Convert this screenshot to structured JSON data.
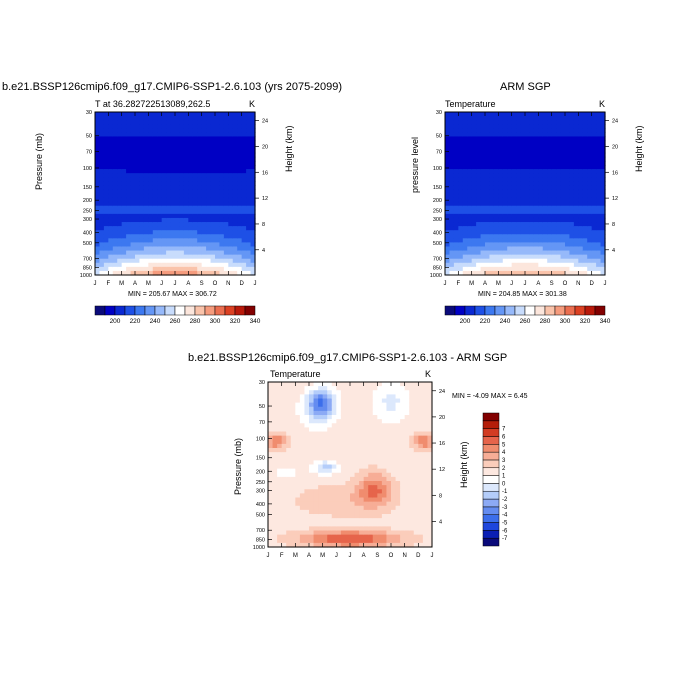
{
  "months": [
    "J",
    "F",
    "M",
    "A",
    "M",
    "J",
    "J",
    "A",
    "S",
    "O",
    "N",
    "D",
    "J"
  ],
  "pressure_ticks": [
    "30",
    "50",
    "70",
    "100",
    "150",
    "200",
    "250",
    "300",
    "400",
    "500",
    "700",
    "850",
    "1000"
  ],
  "colors": {
    "abs_palette": [
      "#0a0a7a",
      "#0000c4",
      "#0a28d2",
      "#1e50e6",
      "#3c78f0",
      "#6496f5",
      "#96b9fa",
      "#c8dcfc",
      "#ffffff",
      "#fce6dc",
      "#fac3aa",
      "#f59b7d",
      "#eb6e50",
      "#dc4123",
      "#b9190a",
      "#820000"
    ],
    "diff_palette": [
      "#0a0a7a",
      "#0a1eb4",
      "#1e46dc",
      "#3c6eeb",
      "#648cf0",
      "#8caaf5",
      "#b4cdfa",
      "#dce8fc",
      "#ffffff",
      "#fde8e0",
      "#fbcdbb",
      "#f7ad96",
      "#f08c6e",
      "#e6644b",
      "#d23c23",
      "#b41e0a",
      "#820000"
    ]
  },
  "panels": {
    "model": {
      "title": "b.e21.BSSP126cmip6.f09_g17.CMIP6-SSP1-2.6.103 (yrs 2075-2099)",
      "subtitle": "T at 36.282722513089,262.5",
      "units": "K",
      "ylabel_left": "Pressure (mb)",
      "ylabel_right": "Height (km)",
      "stats": "MIN = 205.67 MAX = 306.72"
    },
    "obs": {
      "title": "ARM SGP",
      "subtitle": "Temperature",
      "units": "K",
      "ylabel_left": "pressure level",
      "ylabel_right": "Height (km)",
      "stats": "MIN = 204.85 MAX = 301.38"
    },
    "diff": {
      "title": "b.e21.BSSP126cmip6.f09_g17.CMIP6-SSP1-2.6.103 - ARM SGP",
      "subtitle": "Temperature",
      "units": "K",
      "ylabel_left": "Pressure (mb)",
      "ylabel_right": "Height (km)",
      "stats": "MIN =  -4.09 MAX =   6.45"
    }
  },
  "chart_data": [
    {
      "type": "heatmap",
      "title": "b.e21.BSSP126cmip6.f09_g17.CMIP6-SSP1-2.6.103 (yrs 2075-2099)",
      "subtitle": "T at 36.282722513089,262.5",
      "units": "K",
      "xlabel": "",
      "ylabel": "Pressure (mb)",
      "y2label": "Height (km)",
      "x": [
        "J",
        "F",
        "M",
        "A",
        "M",
        "J",
        "J",
        "A",
        "S",
        "O",
        "N",
        "D",
        "J"
      ],
      "y_pressure_mb": [
        30,
        50,
        70,
        100,
        150,
        200,
        250,
        300,
        400,
        500,
        700,
        850,
        1000
      ],
      "y2_ticks_km": [
        4,
        8,
        12,
        16,
        20,
        24
      ],
      "colorbar_labels": [
        200,
        220,
        240,
        260,
        280,
        300,
        320,
        340
      ],
      "min": 205.67,
      "max": 306.72
    },
    {
      "type": "heatmap",
      "title": "ARM SGP",
      "subtitle": "Temperature",
      "units": "K",
      "xlabel": "",
      "ylabel": "pressure level",
      "y2label": "Height (km)",
      "x": [
        "J",
        "F",
        "M",
        "A",
        "M",
        "J",
        "J",
        "A",
        "S",
        "O",
        "N",
        "D",
        "J"
      ],
      "y_pressure_mb": [
        30,
        50,
        70,
        100,
        150,
        200,
        250,
        300,
        400,
        500,
        700,
        850,
        1000
      ],
      "y2_ticks_km": [
        4,
        8,
        12,
        16,
        20,
        24
      ],
      "colorbar_labels": [
        200,
        220,
        240,
        260,
        280,
        300,
        320,
        340
      ],
      "min": 204.85,
      "max": 301.38
    },
    {
      "type": "heatmap",
      "title": "b.e21.BSSP126cmip6.f09_g17.CMIP6-SSP1-2.6.103 - ARM SGP",
      "subtitle": "Temperature",
      "units": "K",
      "xlabel": "",
      "ylabel": "Pressure (mb)",
      "y2label": "Height (km)",
      "x": [
        "J",
        "F",
        "M",
        "A",
        "M",
        "J",
        "J",
        "A",
        "S",
        "O",
        "N",
        "D",
        "J"
      ],
      "y_pressure_mb": [
        30,
        50,
        70,
        100,
        150,
        200,
        250,
        300,
        400,
        500,
        700,
        850,
        1000
      ],
      "y2_ticks_km": [
        4,
        8,
        12,
        16,
        20,
        24
      ],
      "colorbar_labels": [
        -7,
        -6,
        -5,
        -4,
        -3,
        -2,
        -1,
        0,
        1,
        2,
        3,
        4,
        5,
        6,
        7
      ],
      "min": -4.09,
      "max": 6.45
    }
  ]
}
